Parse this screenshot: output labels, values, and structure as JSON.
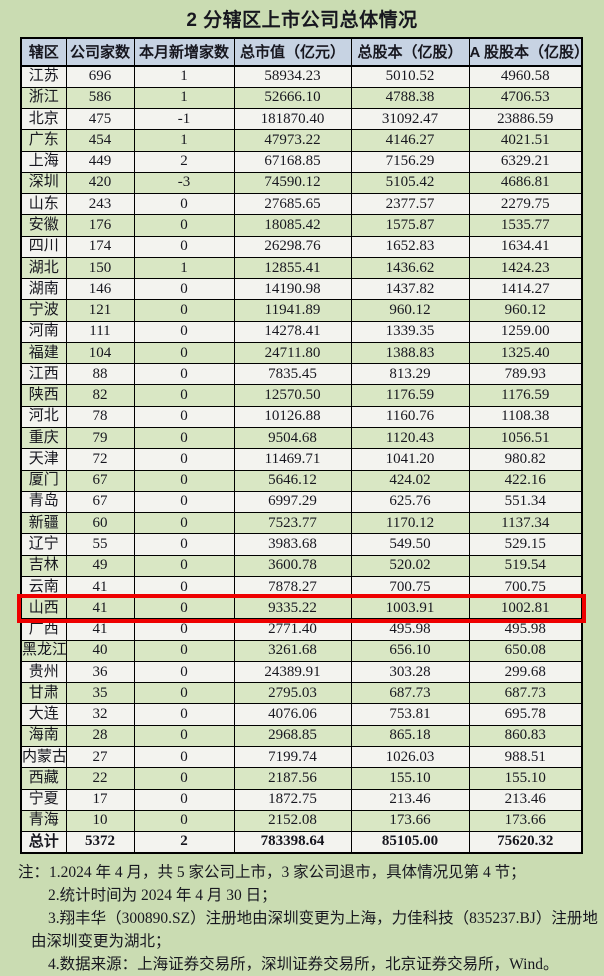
{
  "page_title": "2  分辖区上市公司总体情况",
  "colors": {
    "page_bg": "#cadcb2",
    "row_white": "#f3f3ef",
    "row_green": "#d9e7c4",
    "header_bg": "#c7d3e3",
    "border": "#000000",
    "highlight": "#ee0000",
    "text": "#17171f"
  },
  "table": {
    "columns": [
      "辖区",
      "公司家数",
      "本月新增家数",
      "总市值（亿元）",
      "总股本（亿股）",
      "A 股股本（亿股）"
    ],
    "highlighted_row": "山西",
    "rows": [
      [
        "江苏",
        "696",
        "1",
        "58934.23",
        "5010.52",
        "4960.58"
      ],
      [
        "浙江",
        "586",
        "1",
        "52666.10",
        "4788.38",
        "4706.53"
      ],
      [
        "北京",
        "475",
        "-1",
        "181870.40",
        "31092.47",
        "23886.59"
      ],
      [
        "广东",
        "454",
        "1",
        "47973.22",
        "4146.27",
        "4021.51"
      ],
      [
        "上海",
        "449",
        "2",
        "67168.85",
        "7156.29",
        "6329.21"
      ],
      [
        "深圳",
        "420",
        "-3",
        "74590.12",
        "5105.42",
        "4686.81"
      ],
      [
        "山东",
        "243",
        "0",
        "27685.65",
        "2377.57",
        "2279.75"
      ],
      [
        "安徽",
        "176",
        "0",
        "18085.42",
        "1575.87",
        "1535.77"
      ],
      [
        "四川",
        "174",
        "0",
        "26298.76",
        "1652.83",
        "1634.41"
      ],
      [
        "湖北",
        "150",
        "1",
        "12855.41",
        "1436.62",
        "1424.23"
      ],
      [
        "湖南",
        "146",
        "0",
        "14190.98",
        "1437.82",
        "1414.27"
      ],
      [
        "宁波",
        "121",
        "0",
        "11941.89",
        "960.12",
        "960.12"
      ],
      [
        "河南",
        "111",
        "0",
        "14278.41",
        "1339.35",
        "1259.00"
      ],
      [
        "福建",
        "104",
        "0",
        "24711.80",
        "1388.83",
        "1325.40"
      ],
      [
        "江西",
        "88",
        "0",
        "7835.45",
        "813.29",
        "789.93"
      ],
      [
        "陕西",
        "82",
        "0",
        "12570.50",
        "1176.59",
        "1176.59"
      ],
      [
        "河北",
        "78",
        "0",
        "10126.88",
        "1160.76",
        "1108.38"
      ],
      [
        "重庆",
        "79",
        "0",
        "9504.68",
        "1120.43",
        "1056.51"
      ],
      [
        "天津",
        "72",
        "0",
        "11469.71",
        "1041.20",
        "980.82"
      ],
      [
        "厦门",
        "67",
        "0",
        "5646.12",
        "424.02",
        "422.16"
      ],
      [
        "青岛",
        "67",
        "0",
        "6997.29",
        "625.76",
        "551.34"
      ],
      [
        "新疆",
        "60",
        "0",
        "7523.77",
        "1170.12",
        "1137.34"
      ],
      [
        "辽宁",
        "55",
        "0",
        "3983.68",
        "549.50",
        "529.15"
      ],
      [
        "吉林",
        "49",
        "0",
        "3600.78",
        "520.02",
        "519.54"
      ],
      [
        "云南",
        "41",
        "0",
        "7878.27",
        "700.75",
        "700.75"
      ],
      [
        "山西",
        "41",
        "0",
        "9335.22",
        "1003.91",
        "1002.81"
      ],
      [
        "广西",
        "41",
        "0",
        "2771.40",
        "495.98",
        "495.98"
      ],
      [
        "黑龙江",
        "40",
        "0",
        "3261.68",
        "656.10",
        "650.08"
      ],
      [
        "贵州",
        "36",
        "0",
        "24389.91",
        "303.28",
        "299.68"
      ],
      [
        "甘肃",
        "35",
        "0",
        "2795.03",
        "687.73",
        "687.73"
      ],
      [
        "大连",
        "32",
        "0",
        "4076.06",
        "753.81",
        "695.78"
      ],
      [
        "海南",
        "28",
        "0",
        "2968.85",
        "865.18",
        "860.83"
      ],
      [
        "内蒙古",
        "27",
        "0",
        "7199.74",
        "1026.03",
        "988.51"
      ],
      [
        "西藏",
        "22",
        "0",
        "2187.56",
        "155.10",
        "155.10"
      ],
      [
        "宁夏",
        "17",
        "0",
        "1872.75",
        "213.46",
        "213.46"
      ],
      [
        "青海",
        "10",
        "0",
        "2152.08",
        "173.66",
        "173.66"
      ]
    ],
    "total_row": [
      "总计",
      "5372",
      "2",
      "783398.64",
      "85105.00",
      "75620.32"
    ]
  },
  "notes": [
    "注：1.2024 年 4 月，共 5 家公司上市，3 家公司退市，具体情况见第 4 节；",
    "2.统计时间为 2024 年 4 月 30 日；",
    "3.翔丰华（300890.SZ）注册地由深圳变更为上海，力佳科技（835237.BJ）注册地",
    "由深圳变更为湖北；",
    "4.数据来源：上海证券交易所，深圳证券交易所，北京证券交易所，Wind。"
  ]
}
